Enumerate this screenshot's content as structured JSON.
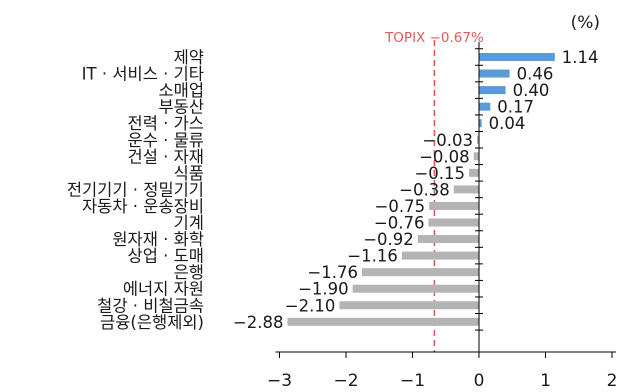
{
  "chart_data": {
    "type": "bar",
    "orientation": "horizontal",
    "unit": "(%)",
    "categories": [
      "제약",
      "IT · 서비스 · 기타",
      "소매업",
      "부동산",
      "전력 · 가스",
      "운수 · 물류",
      "건설 · 자재",
      "식품",
      "전기기기 · 정밀기기",
      "자동차 · 운송장비",
      "기계",
      "원자재 · 화학",
      "상업 · 도매",
      "은행",
      "에너지 자원",
      "철강 · 비철금속",
      "금융(은행제외)"
    ],
    "values": [
      1.14,
      0.46,
      0.4,
      0.17,
      0.04,
      -0.03,
      -0.08,
      -0.15,
      -0.38,
      -0.75,
      -0.76,
      -0.92,
      -1.16,
      -1.76,
      -1.9,
      -2.1,
      -2.88
    ],
    "value_labels": [
      "1.14",
      "0.46",
      "0.40",
      "0.17",
      "0.04",
      "−0.03",
      "−0.08",
      "−0.15",
      "−0.38",
      "−0.75",
      "−0.76",
      "−0.92",
      "−1.16",
      "−1.76",
      "−1.90",
      "−2.10",
      "−2.88"
    ],
    "xlim": [
      -3,
      2
    ],
    "xticks": [
      -3,
      -2,
      -1,
      0,
      1,
      2
    ],
    "xtick_labels": [
      "−3",
      "−2",
      "−1",
      "0",
      "1",
      "2"
    ],
    "reference_line": {
      "value": -0.67,
      "label": "TOPIX −0.67%"
    },
    "colors": {
      "positive": "#5b9bd5",
      "negative": "#b4b4b4",
      "reference": "#e05a5a",
      "axis": "#000000",
      "text": "#1a1a1a"
    }
  }
}
